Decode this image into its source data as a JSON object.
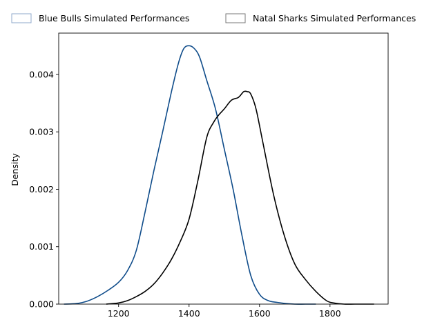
{
  "chart_data": {
    "type": "line",
    "title": "",
    "xlabel": "",
    "ylabel": "Density",
    "xlim": [
      1030,
      1965
    ],
    "ylim": [
      0,
      0.00472
    ],
    "x_ticks": [
      1200,
      1400,
      1600,
      1800
    ],
    "y_ticks": [
      0.0,
      0.001,
      0.002,
      0.003,
      0.004
    ],
    "x_tick_labels": [
      "1200",
      "1400",
      "1600",
      "1800"
    ],
    "y_tick_labels": [
      "0.000",
      "0.001",
      "0.002",
      "0.003",
      "0.004"
    ],
    "grid": false,
    "legend": {
      "position": "top, outside plot, horizontal"
    },
    "series": [
      {
        "name": "Blue Bulls Simulated Performances",
        "color": "#0f4c8a",
        "legend_edge": "#8fa8cb",
        "x": [
          1045,
          1080,
          1110,
          1140,
          1170,
          1200,
          1225,
          1250,
          1275,
          1300,
          1325,
          1350,
          1370,
          1385,
          1400,
          1415,
          1430,
          1450,
          1475,
          1500,
          1525,
          1550,
          1575,
          1600,
          1625,
          1650,
          1675,
          1700,
          1730,
          1760
        ],
        "y": [
          0.0,
          1e-05,
          5e-05,
          0.00013,
          0.00024,
          0.00038,
          0.00058,
          0.00093,
          0.0016,
          0.00232,
          0.003,
          0.0037,
          0.0042,
          0.00445,
          0.0045,
          0.00445,
          0.0043,
          0.0039,
          0.0034,
          0.0027,
          0.002,
          0.0012,
          0.0005,
          0.00017,
          6e-05,
          3e-05,
          1e-05,
          0.0,
          0.0,
          0.0
        ]
      },
      {
        "name": "Natal Sharks Simulated Performances",
        "color": "#000000",
        "legend_edge": "#7a7a7a",
        "x": [
          1165,
          1200,
          1225,
          1250,
          1275,
          1300,
          1325,
          1350,
          1375,
          1400,
          1425,
          1450,
          1470,
          1485,
          1500,
          1520,
          1540,
          1555,
          1565,
          1575,
          1590,
          1610,
          1640,
          1670,
          1700,
          1730,
          1760,
          1790,
          1810,
          1840,
          1870,
          1925
        ],
        "y": [
          0.0,
          2e-05,
          6e-05,
          0.00013,
          0.00022,
          0.00035,
          0.00054,
          0.00078,
          0.00109,
          0.00148,
          0.00215,
          0.0029,
          0.00317,
          0.0033,
          0.0034,
          0.00355,
          0.0036,
          0.0037,
          0.0037,
          0.00366,
          0.0034,
          0.0028,
          0.0019,
          0.0012,
          0.0007,
          0.00043,
          0.00022,
          6e-05,
          2e-05,
          0.0,
          0.0,
          0.0
        ]
      }
    ]
  }
}
